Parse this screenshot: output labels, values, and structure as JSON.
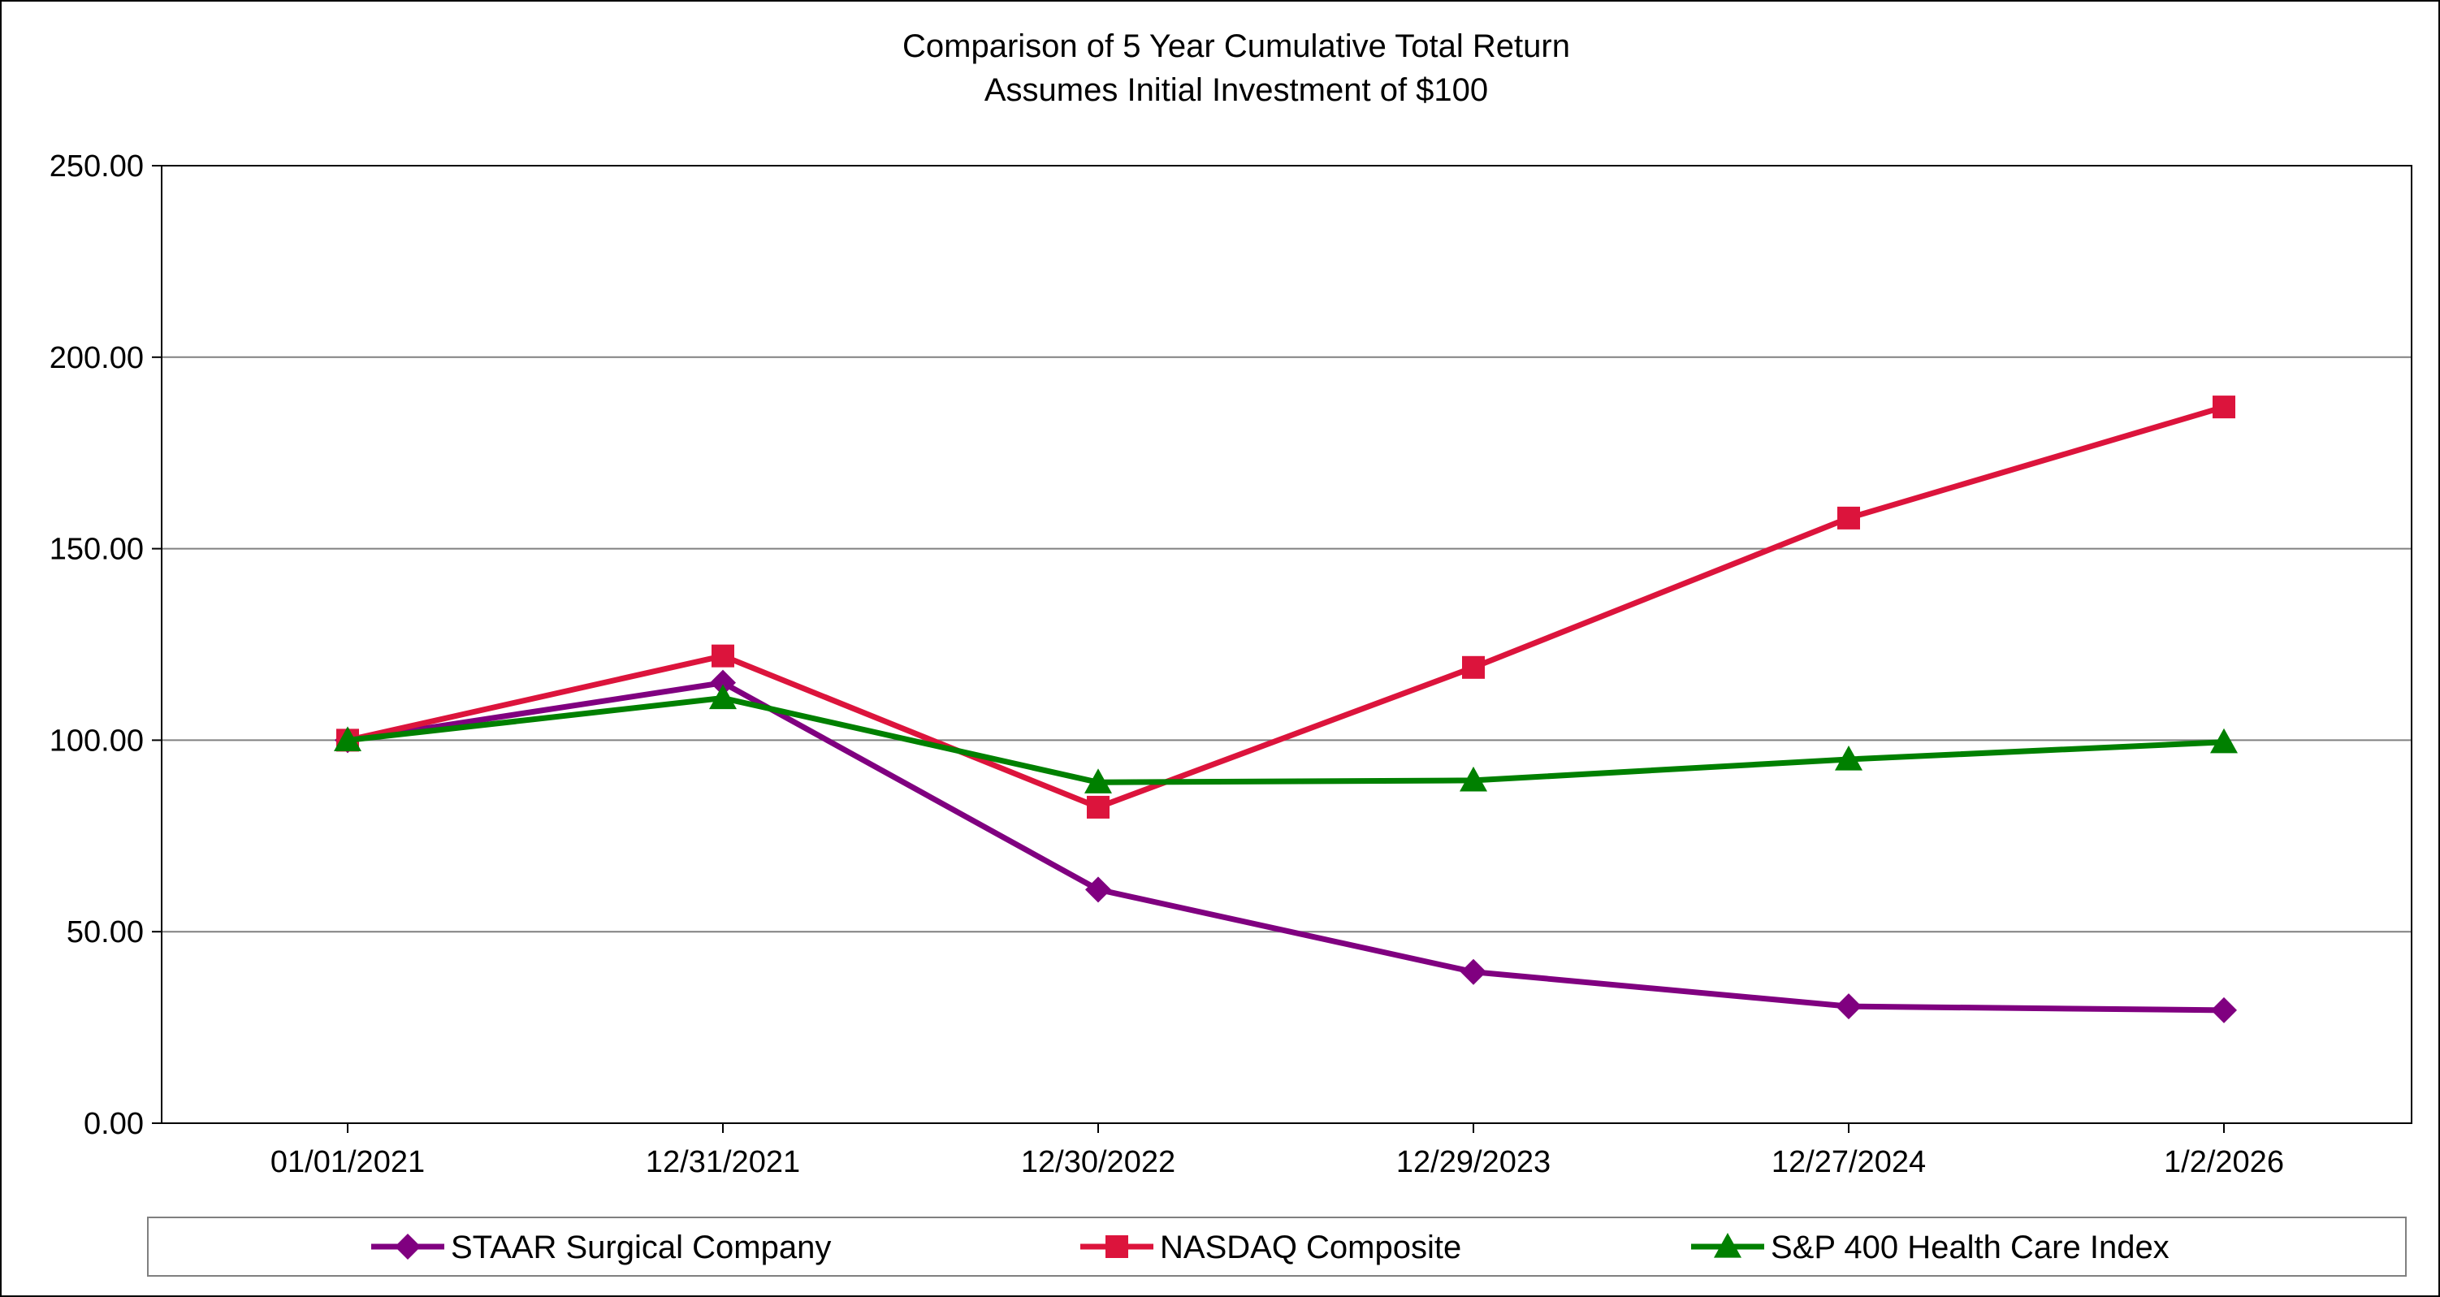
{
  "chart_data": {
    "type": "line",
    "title": "Comparison of 5 Year Cumulative Total Return",
    "subtitle": "Assumes Initial Investment of $100",
    "categories": [
      "01/01/2021",
      "12/31/2021",
      "12/30/2022",
      "12/29/2023",
      "12/27/2024",
      "1/2/2026"
    ],
    "ylim": [
      0,
      250
    ],
    "yticks": [
      "0.00",
      "50.00",
      "100.00",
      "150.00",
      "200.00",
      "250.00"
    ],
    "grid": true,
    "legend_position": "bottom",
    "series": [
      {
        "name": "STAAR Surgical Company",
        "color": "#800080",
        "marker": "diamond",
        "values": [
          100,
          115,
          61,
          39.5,
          30.5,
          29.5
        ]
      },
      {
        "name": "NASDAQ Composite",
        "color": "#DC143C",
        "marker": "square",
        "values": [
          100,
          122,
          82.5,
          119,
          158,
          187
        ]
      },
      {
        "name": "S&P 400 Health Care Index",
        "color": "#008000",
        "marker": "triangle",
        "values": [
          100,
          111,
          89,
          89.5,
          95,
          99.5
        ]
      }
    ]
  }
}
